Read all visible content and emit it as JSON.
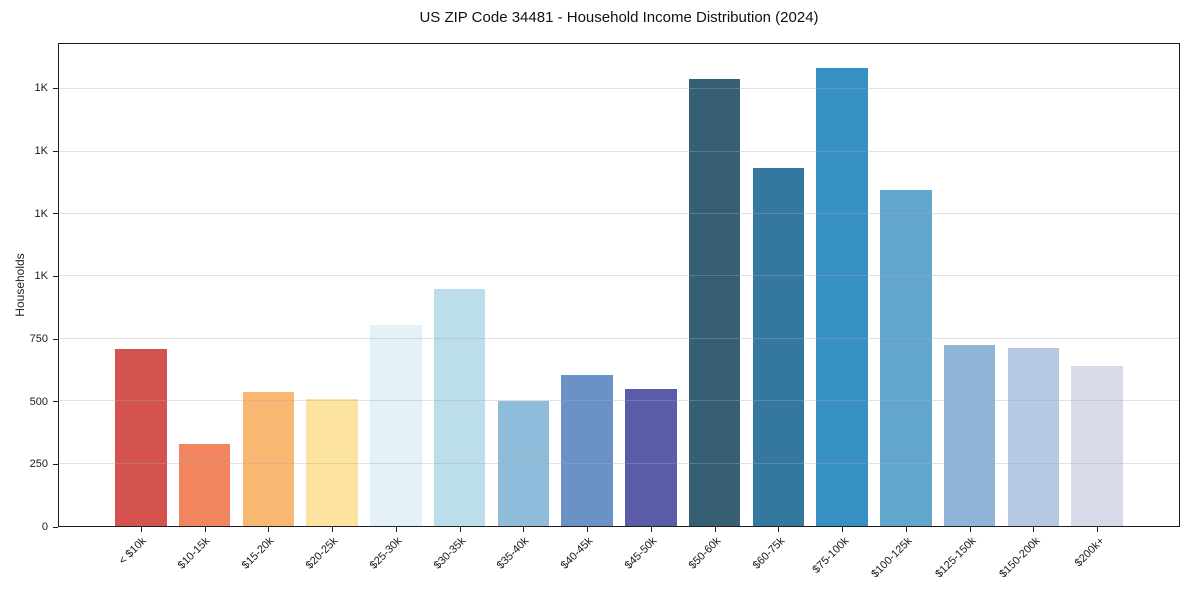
{
  "chart_data": {
    "type": "bar",
    "title": "US ZIP Code 34481 - Household Income Distribution (2024)",
    "xlabel": "",
    "ylabel": "Households",
    "categories": [
      "< $10k",
      "$10-15k",
      "$15-20k",
      "$20-25k",
      "$25-30k",
      "$30-35k",
      "$35-40k",
      "$40-45k",
      "$45-50k",
      "$50-60k",
      "$60-75k",
      "$75-100k",
      "$100-125k",
      "$125-150k",
      "$150-200k",
      "$200k+"
    ],
    "values": [
      710,
      330,
      535,
      510,
      805,
      950,
      500,
      605,
      550,
      1790,
      1435,
      1835,
      1345,
      725,
      715,
      640
    ],
    "bar_colors": [
      "#d5534e",
      "#f0855f",
      "#f9b871",
      "#fce4a0",
      "#e4f1f6",
      "#bcdeea",
      "#8fbcdb",
      "#6b92c7",
      "#5b5ca9",
      "#365f74",
      "#35789f",
      "#3790c3",
      "#63a6cd",
      "#8fb4d8",
      "#b7c9e2",
      "#d7dae9"
    ],
    "ylim": [
      0,
      1931
    ],
    "yticks": [
      {
        "value": 0,
        "label": "0"
      },
      {
        "value": 250,
        "label": "250"
      },
      {
        "value": 500,
        "label": "500"
      },
      {
        "value": 750,
        "label": "750"
      },
      {
        "value": 1000,
        "label": "1K"
      },
      {
        "value": 1250,
        "label": "1K"
      },
      {
        "value": 1500,
        "label": "1K"
      },
      {
        "value": 1750,
        "label": "1K"
      }
    ],
    "grid": "horizontal",
    "grid_color": "#e9e9e9",
    "axis_color": "#1c1c1c",
    "background": "#ffffff",
    "legend": "none"
  }
}
